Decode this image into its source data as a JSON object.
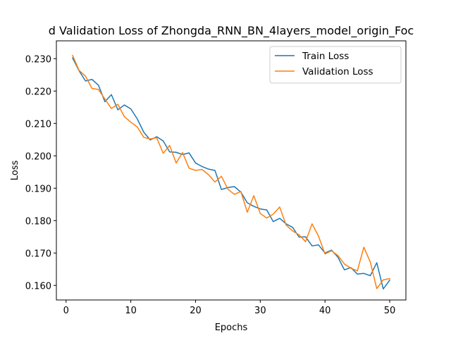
{
  "chart_data": {
    "type": "line",
    "title": "d Validation Loss of Zhongda_RNN_BN_4layers_model_origin_Foc",
    "xlabel": "Epochs",
    "ylabel": "Loss",
    "xlim": [
      -1.5,
      52.5
    ],
    "ylim": [
      0.1555,
      0.2355
    ],
    "xticks": [
      0,
      10,
      20,
      30,
      40,
      50
    ],
    "yticks": [
      0.16,
      0.17,
      0.18,
      0.19,
      0.2,
      0.21,
      0.22,
      0.23
    ],
    "ytick_labels": [
      "0.160",
      "0.170",
      "0.180",
      "0.190",
      "0.200",
      "0.210",
      "0.220",
      "0.230"
    ],
    "grid": false,
    "legend": "top-right",
    "x": [
      1,
      2,
      3,
      4,
      5,
      6,
      7,
      8,
      9,
      10,
      11,
      12,
      13,
      14,
      15,
      16,
      17,
      18,
      19,
      20,
      21,
      22,
      23,
      24,
      25,
      26,
      27,
      28,
      29,
      30,
      31,
      32,
      33,
      34,
      35,
      36,
      37,
      38,
      39,
      40,
      41,
      42,
      43,
      44,
      45,
      46,
      47,
      48,
      49,
      50
    ],
    "series": [
      {
        "name": "Train Loss",
        "color": "#1f77b4",
        "values": [
          0.2302,
          0.2263,
          0.2231,
          0.2236,
          0.2218,
          0.2167,
          0.2189,
          0.2142,
          0.2157,
          0.2145,
          0.2114,
          0.2073,
          0.2049,
          0.2059,
          0.2046,
          0.2012,
          0.2011,
          0.2004,
          0.2009,
          0.1978,
          0.1967,
          0.1959,
          0.1955,
          0.1896,
          0.1902,
          0.1905,
          0.1888,
          0.1855,
          0.1844,
          0.1836,
          0.1833,
          0.1797,
          0.1807,
          0.179,
          0.1779,
          0.1749,
          0.175,
          0.1722,
          0.1725,
          0.17,
          0.1709,
          0.1687,
          0.1648,
          0.1655,
          0.1635,
          0.1637,
          0.163,
          0.167,
          0.1589,
          0.1616
        ]
      },
      {
        "name": "Validation Loss",
        "color": "#ff7f0e",
        "values": [
          0.231,
          0.2264,
          0.2246,
          0.2208,
          0.2205,
          0.2175,
          0.2146,
          0.2159,
          0.2121,
          0.2104,
          0.2089,
          0.2057,
          0.2052,
          0.2056,
          0.2008,
          0.2032,
          0.1978,
          0.201,
          0.1962,
          0.1955,
          0.1958,
          0.1942,
          0.1919,
          0.1937,
          0.1897,
          0.1881,
          0.189,
          0.1826,
          0.1877,
          0.1822,
          0.1808,
          0.182,
          0.1842,
          0.1786,
          0.1768,
          0.1756,
          0.1735,
          0.179,
          0.1752,
          0.1697,
          0.1707,
          0.1692,
          0.1666,
          0.1653,
          0.1645,
          0.1718,
          0.1672,
          0.159,
          0.1617,
          0.1621
        ]
      }
    ]
  }
}
